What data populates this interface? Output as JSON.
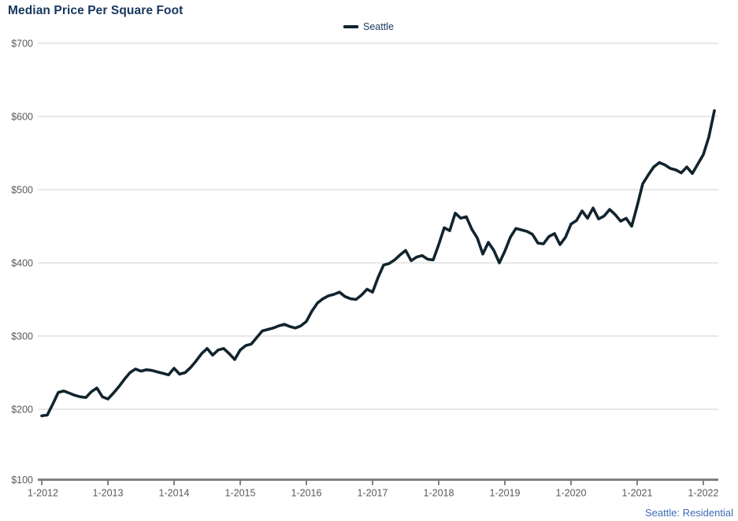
{
  "header": {
    "title": "Median Price Per Square Foot"
  },
  "legend": {
    "label": "Seattle",
    "swatch_color": "#11242E"
  },
  "footer": {
    "source_label": "Seattle: Residential"
  },
  "colors": {
    "title": "#17375E",
    "series_line": "#11242E",
    "gridline": "#D9D9D9",
    "axis_line": "#808080",
    "tick_label": "#595959",
    "source_note": "#3E6DB5"
  },
  "chart_data": {
    "type": "line",
    "title": "Median Price Per Square Foot",
    "xlabel": "",
    "ylabel": "",
    "ylim": [
      100,
      700
    ],
    "y_tick_step": 100,
    "y_tick_labels": [
      "$100",
      "$200",
      "$300",
      "$400",
      "$500",
      "$600",
      "$700"
    ],
    "x_tick_labels": [
      "1-2012",
      "1-2013",
      "1-2014",
      "1-2015",
      "1-2016",
      "1-2017",
      "1-2018",
      "1-2019",
      "1-2020",
      "1-2021",
      "1-2022"
    ],
    "grid": "horizontal",
    "legend_position": "top-center",
    "frequency": "monthly",
    "x_start": "1-2012",
    "x_end": "3-2022",
    "series": [
      {
        "name": "Seattle",
        "values": [
          191,
          192,
          207,
          223,
          225,
          222,
          219,
          217,
          216,
          224,
          229,
          217,
          214,
          222,
          231,
          241,
          250,
          255,
          252,
          254,
          253,
          251,
          249,
          247,
          256,
          248,
          250,
          257,
          266,
          276,
          283,
          274,
          281,
          283,
          276,
          268,
          281,
          287,
          289,
          298,
          307,
          309,
          311,
          314,
          316,
          313,
          311,
          314,
          320,
          334,
          345,
          351,
          355,
          357,
          360,
          354,
          351,
          350,
          356,
          364,
          360,
          380,
          397,
          399,
          404,
          411,
          417,
          403,
          408,
          410,
          405,
          404,
          425,
          448,
          444,
          468,
          461,
          463,
          446,
          434,
          412,
          428,
          417,
          400,
          416,
          435,
          447,
          445,
          443,
          439,
          427,
          426,
          436,
          440,
          425,
          435,
          453,
          458,
          471,
          461,
          475,
          460,
          464,
          473,
          466,
          457,
          461,
          450,
          478,
          508,
          520,
          531,
          537,
          534,
          529,
          527,
          523,
          531,
          522,
          535,
          548,
          572,
          608
        ]
      }
    ]
  }
}
